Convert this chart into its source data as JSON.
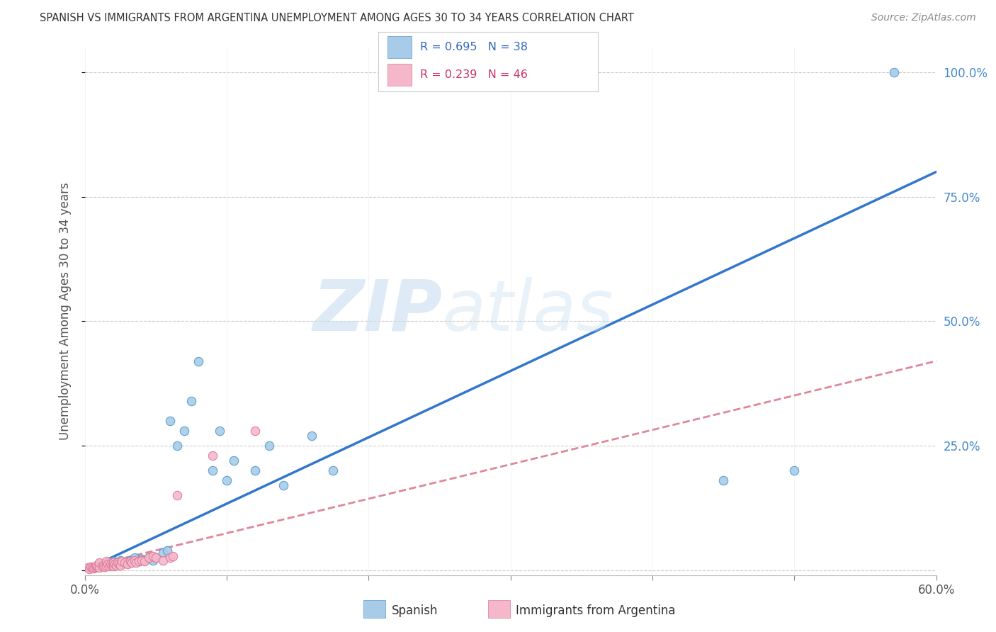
{
  "title": "SPANISH VS IMMIGRANTS FROM ARGENTINA UNEMPLOYMENT AMONG AGES 30 TO 34 YEARS CORRELATION CHART",
  "source": "Source: ZipAtlas.com",
  "ylabel": "Unemployment Among Ages 30 to 34 years",
  "xlim": [
    0.0,
    0.6
  ],
  "ylim": [
    -0.01,
    1.05
  ],
  "xticks": [
    0.0,
    0.1,
    0.2,
    0.3,
    0.4,
    0.5,
    0.6
  ],
  "xticklabels": [
    "0.0%",
    "",
    "",
    "",
    "",
    "",
    "60.0%"
  ],
  "ytick_positions": [
    0.0,
    0.25,
    0.5,
    0.75,
    1.0
  ],
  "yticklabels_right": [
    "",
    "25.0%",
    "50.0%",
    "75.0%",
    "100.0%"
  ],
  "spanish_color": "#a8cce8",
  "spanish_edge_color": "#5599cc",
  "argentina_color": "#f5b8ca",
  "argentina_edge_color": "#dd7799",
  "spanish_R": 0.695,
  "spanish_N": 38,
  "argentina_R": 0.239,
  "argentina_N": 46,
  "spanish_line_color": "#3377cc",
  "argentina_line_color": "#dd8899",
  "spanish_scatter_x": [
    0.005,
    0.008,
    0.01,
    0.012,
    0.015,
    0.018,
    0.02,
    0.022,
    0.025,
    0.025,
    0.03,
    0.032,
    0.035,
    0.038,
    0.04,
    0.042,
    0.045,
    0.048,
    0.05,
    0.055,
    0.058,
    0.06,
    0.065,
    0.07,
    0.075,
    0.08,
    0.09,
    0.095,
    0.1,
    0.105,
    0.12,
    0.13,
    0.14,
    0.16,
    0.175,
    0.45,
    0.5,
    0.57
  ],
  "spanish_scatter_y": [
    0.005,
    0.008,
    0.012,
    0.01,
    0.015,
    0.01,
    0.018,
    0.015,
    0.02,
    0.012,
    0.015,
    0.02,
    0.025,
    0.018,
    0.022,
    0.02,
    0.025,
    0.02,
    0.025,
    0.035,
    0.04,
    0.3,
    0.25,
    0.28,
    0.34,
    0.42,
    0.2,
    0.28,
    0.18,
    0.22,
    0.2,
    0.25,
    0.17,
    0.27,
    0.2,
    0.18,
    0.2,
    1.0
  ],
  "argentina_scatter_x": [
    0.002,
    0.003,
    0.004,
    0.005,
    0.006,
    0.007,
    0.008,
    0.008,
    0.009,
    0.01,
    0.01,
    0.012,
    0.013,
    0.014,
    0.015,
    0.015,
    0.016,
    0.017,
    0.018,
    0.019,
    0.02,
    0.02,
    0.021,
    0.022,
    0.023,
    0.024,
    0.025,
    0.026,
    0.028,
    0.03,
    0.032,
    0.033,
    0.035,
    0.036,
    0.038,
    0.04,
    0.042,
    0.045,
    0.048,
    0.05,
    0.055,
    0.06,
    0.062,
    0.065,
    0.09,
    0.12
  ],
  "argentina_scatter_y": [
    0.005,
    0.003,
    0.006,
    0.005,
    0.004,
    0.005,
    0.006,
    0.01,
    0.007,
    0.005,
    0.015,
    0.008,
    0.01,
    0.007,
    0.01,
    0.018,
    0.012,
    0.008,
    0.012,
    0.01,
    0.008,
    0.015,
    0.012,
    0.01,
    0.015,
    0.012,
    0.01,
    0.018,
    0.015,
    0.012,
    0.018,
    0.015,
    0.02,
    0.015,
    0.018,
    0.02,
    0.018,
    0.025,
    0.028,
    0.025,
    0.02,
    0.025,
    0.028,
    0.15,
    0.23,
    0.28
  ],
  "spanish_line_x0": 0.0,
  "spanish_line_y0": 0.0,
  "spanish_line_x1": 0.6,
  "spanish_line_y1": 0.8,
  "argentina_line_x0": 0.0,
  "argentina_line_y0": 0.005,
  "argentina_line_x1": 0.6,
  "argentina_line_y1": 0.42,
  "watermark_zip": "ZIP",
  "watermark_atlas": "atlas",
  "background_color": "#ffffff",
  "grid_color": "#cccccc"
}
